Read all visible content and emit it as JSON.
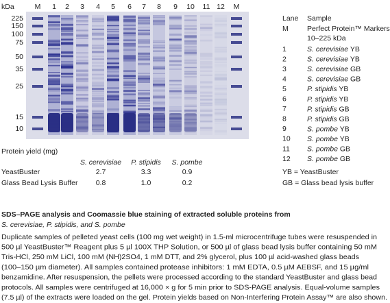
{
  "gel": {
    "unit_label": "kDa",
    "lanes": [
      "M",
      "1",
      "2",
      "3",
      "4",
      "5",
      "6",
      "7",
      "8",
      "9",
      "10",
      "11",
      "12",
      "M"
    ],
    "markers": [
      "225",
      "150",
      "100",
      "75",
      "50",
      "35",
      "25",
      "15",
      "10"
    ]
  },
  "legend": {
    "headers": [
      "Lane",
      "Sample"
    ],
    "marker_row": {
      "lane": "M",
      "sample": "Perfect Protein™ Markers,",
      "sample_line2": "10–225 kDa"
    },
    "rows": [
      {
        "lane": "1",
        "species": "S. cerevisiae",
        "lysis": "YB"
      },
      {
        "lane": "2",
        "species": "S. cerevisiae",
        "lysis": "YB"
      },
      {
        "lane": "3",
        "species": "S. cerevisiae",
        "lysis": "GB"
      },
      {
        "lane": "4",
        "species": "S. cerevisiae",
        "lysis": "GB"
      },
      {
        "lane": "5",
        "species": "P. stipidis",
        "lysis": "YB"
      },
      {
        "lane": "6",
        "species": "P. stipidis",
        "lysis": "YB"
      },
      {
        "lane": "7",
        "species": "P. stipidis",
        "lysis": "GB"
      },
      {
        "lane": "8",
        "species": "P. stipidis",
        "lysis": "GB"
      },
      {
        "lane": "9",
        "species": "S. pombe",
        "lysis": "YB"
      },
      {
        "lane": "10",
        "species": "S. pombe",
        "lysis": "YB"
      },
      {
        "lane": "11",
        "species": "S. pombe",
        "lysis": "GB"
      },
      {
        "lane": "12",
        "species": "S. pombe",
        "lysis": "GB"
      }
    ],
    "notes": [
      "YB = YeastBuster",
      "GB = Glass bead lysis buffer"
    ]
  },
  "yield_table": {
    "title": "Protein yield (mg)",
    "columns": [
      "S. cerevisiae",
      "P. stipidis",
      "S. pombe"
    ],
    "rows": [
      {
        "label": "YeastBuster",
        "values": [
          "2.7",
          "3.3",
          "0.9"
        ]
      },
      {
        "label": "Glass Bead Lysis Buffer",
        "values": [
          "0.8",
          "1.0",
          "0.2"
        ]
      }
    ]
  },
  "caption": {
    "title": "SDS–PAGE analysis and Coomassie blue staining of extracted soluble proteins from",
    "subtitle": "S. cerevisiae, P. stipidis, and S. pombe",
    "body": [
      "Duplicate samples of pelleted yeast cells (100 mg wet weight) in 1.5-ml microcentrifuge tubes were resuspended in",
      "500 µl YeastBuster™ Reagent plus 5 µl 100X THP Solution, or 500 µl of glass bead lysis buffer containing 50 mM",
      "Tris-HCl, 250 mM LiCl, 100 mM (NH)2SO4, 1 mM DTT, and 2% glycerol, plus 100 µl acid-washed glass beads",
      "(100–150 µm diameter). All samples contained protease inhibitors: 1 mM EDTA, 0.5 µM AEBSF, and 15 µg/ml",
      "benzamidine. After resuspension, the pellets were processed according to the standard YeastBuster and glass bead",
      "protocols. All samples were centrifuged at 16,000 × g for 5 min prior to SDS-PAGE analysis. Equal-volume samples",
      "(7.5 µl) of the extracts were loaded on the gel. Protein yields based on Non-Interfering Protein Assay™ are also shown."
    ]
  }
}
